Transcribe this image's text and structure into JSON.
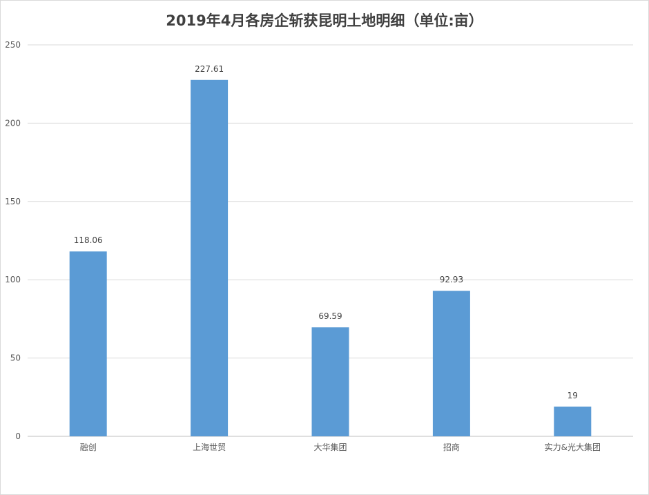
{
  "chart_data": {
    "type": "bar",
    "title": "2019年4月各房企斩获昆明土地明细（单位:亩）",
    "xlabel": "",
    "ylabel": "",
    "categories": [
      "融创",
      "上海世贸",
      "大华集团",
      "招商",
      "实力&光大集团"
    ],
    "values": [
      118.06,
      227.61,
      69.59,
      92.93,
      19
    ],
    "value_labels": [
      "118.06",
      "227.61",
      "69.59",
      "92.93",
      "19"
    ],
    "ylim": [
      0,
      250
    ],
    "yticks": [
      0,
      50,
      100,
      150,
      200,
      250
    ],
    "grid": true,
    "legend": "none",
    "bar_color": "#5b9bd5"
  }
}
